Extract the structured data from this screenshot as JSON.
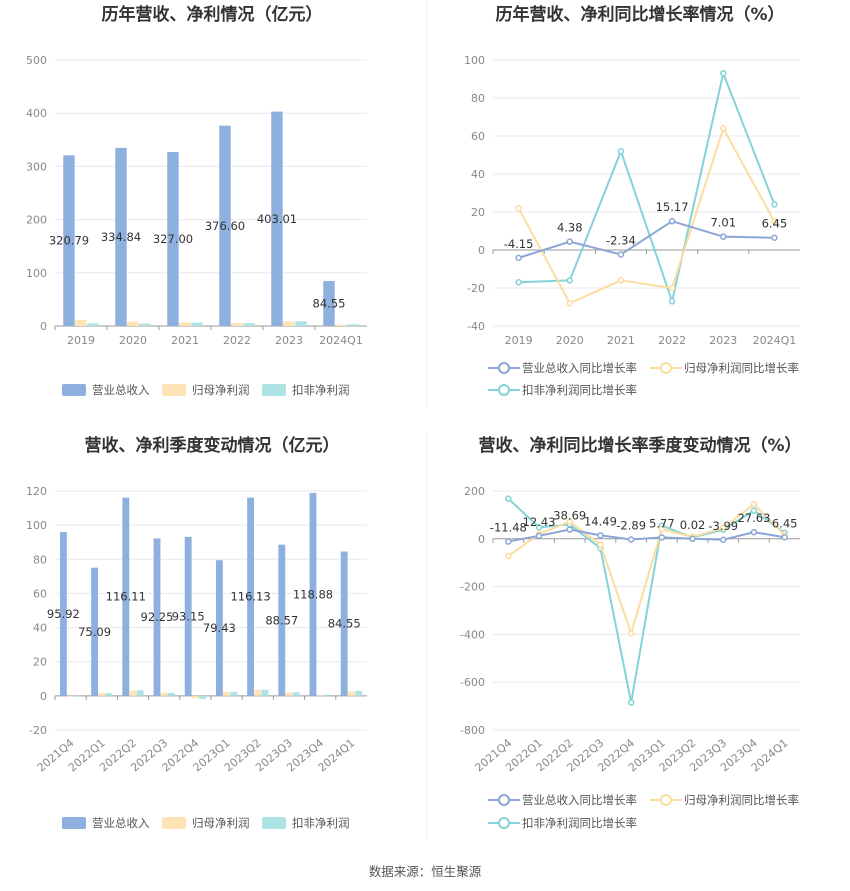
{
  "colors": {
    "revenue": "#8eb0de",
    "parent_profit": "#fde3b5",
    "deducted_profit": "#aee3e6",
    "revenue_line": "#8aa6d6",
    "parent_line": "#fcdca0",
    "deducted_line": "#84d3d8"
  },
  "source": "数据来源：恒生聚源",
  "chart_data": [
    {
      "type": "bar",
      "title": "历年营收、净利情况（亿元）",
      "categories": [
        "2019",
        "2020",
        "2021",
        "2022",
        "2023",
        "2024Q1"
      ],
      "ylim": [
        0,
        500
      ],
      "yticks": [
        "0",
        "100",
        "200",
        "300",
        "400",
        "500"
      ],
      "series": [
        {
          "name": "营业总收入",
          "values": [
            320.79,
            334.84,
            327.0,
            376.6,
            403.01,
            84.55
          ],
          "labels": [
            "320.79",
            "334.84",
            "327.00",
            "376.60",
            "403.01",
            "84.55"
          ]
        },
        {
          "name": "归母净利润",
          "values": [
            11.2,
            8.1,
            6.8,
            5.4,
            8.6,
            2.4
          ]
        },
        {
          "name": "扣非净利润",
          "values": [
            5.0,
            4.4,
            6.5,
            5.2,
            8.8,
            3.2
          ]
        }
      ],
      "legend": "bottom"
    },
    {
      "type": "line",
      "title": "历年营收、净利同比增长率情况（%）",
      "categories": [
        "2019",
        "2020",
        "2021",
        "2022",
        "2023",
        "2024Q1"
      ],
      "ylim": [
        -40,
        100
      ],
      "yticks": [
        "-40",
        "-20",
        "0",
        "20",
        "40",
        "60",
        "80",
        "100"
      ],
      "series": [
        {
          "name": "营业总收入同比增长率",
          "values": [
            -4.15,
            4.38,
            -2.34,
            15.17,
            7.01,
            6.45
          ],
          "labels": [
            "-4.15",
            "4.38",
            "-2.34",
            "15.17",
            "7.01",
            "6.45"
          ]
        },
        {
          "name": "归母净利润同比增长率",
          "values": [
            22,
            -28,
            -16,
            -20,
            64,
            15
          ]
        },
        {
          "name": "扣非净利润同比增长率",
          "values": [
            -17,
            -16,
            52,
            -27,
            93,
            24
          ]
        }
      ],
      "legend": "bottom"
    },
    {
      "type": "bar",
      "title": "营收、净利季度变动情况（亿元）",
      "categories": [
        "2021Q4",
        "2022Q1",
        "2022Q2",
        "2022Q3",
        "2022Q4",
        "2023Q1",
        "2023Q2",
        "2023Q3",
        "2023Q4",
        "2024Q1"
      ],
      "ylim": [
        -20,
        120
      ],
      "yticks": [
        "-20",
        "0",
        "20",
        "40",
        "60",
        "80",
        "100",
        "120"
      ],
      "series": [
        {
          "name": "营业总收入",
          "values": [
            95.92,
            75.09,
            116.11,
            92.25,
            93.15,
            79.43,
            116.13,
            88.57,
            118.88,
            84.55
          ],
          "labels": [
            "95.92",
            "75.09",
            "116.11",
            "92.25",
            "93.15",
            "79.43",
            "116.13",
            "88.57",
            "118.88",
            "84.55"
          ]
        },
        {
          "name": "归母净利润",
          "values": [
            -0.6,
            1.6,
            3.2,
            1.8,
            -1.3,
            2.4,
            3.5,
            2.0,
            0.6,
            2.5
          ]
        },
        {
          "name": "扣非净利润",
          "values": [
            -0.5,
            1.6,
            3.3,
            1.8,
            -1.8,
            2.4,
            3.6,
            2.1,
            0.6,
            3.0
          ]
        }
      ],
      "legend": "bottom"
    },
    {
      "type": "line",
      "title": "营收、净利同比增长率季度变动情况（%）",
      "categories": [
        "2021Q4",
        "2022Q1",
        "2022Q2",
        "2022Q3",
        "2022Q4",
        "2023Q1",
        "2023Q2",
        "2023Q3",
        "2023Q4",
        "2024Q1"
      ],
      "ylim": [
        -800,
        200
      ],
      "yticks": [
        "-800",
        "-600",
        "-400",
        "-200",
        "0",
        "200"
      ],
      "series": [
        {
          "name": "营业总收入同比增长率",
          "values": [
            -11.48,
            12.43,
            38.69,
            14.49,
            -2.89,
            5.77,
            0.02,
            -3.99,
            27.63,
            6.45
          ],
          "labels": [
            "-11.48",
            "12.43",
            "38.69",
            "14.49",
            "-2.89",
            "5.77",
            "0.02",
            "-3.99",
            "27.63",
            "6.45"
          ]
        },
        {
          "name": "归母净利润同比增长率",
          "values": [
            -72,
            20,
            72,
            -25,
            -395,
            40,
            8,
            45,
            145,
            15
          ]
        },
        {
          "name": "扣非净利润同比增长率",
          "values": [
            168,
            48,
            60,
            -40,
            -685,
            55,
            5,
            38,
            118,
            25
          ]
        }
      ],
      "legend": "bottom"
    }
  ]
}
